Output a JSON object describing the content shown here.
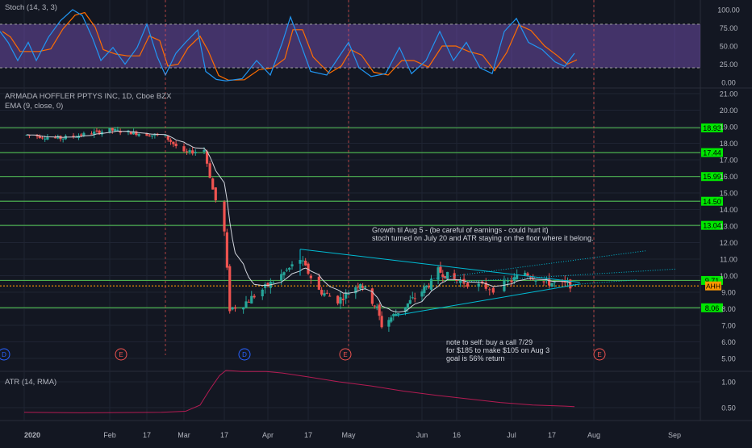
{
  "colors": {
    "background": "#131722",
    "grid": "#1f2433",
    "divider": "#2a2e39",
    "up": "#26a69a",
    "down": "#ef5350",
    "stoch_k": "#2196f3",
    "stoch_d": "#ff6d00",
    "stoch_band": "#7e57c2",
    "level": "#4caf50",
    "level_label": "#00e600",
    "current_price": "#ff9800",
    "ema": "#d1d4dc",
    "atr": "#e91e63",
    "triangle": "#00bcd4",
    "earnings": "#ef5350",
    "dividend": "#2962ff"
  },
  "stoch_panel": {
    "title": "Stoch (14, 3, 3)",
    "axis_labels": [
      "100.00",
      "75.00",
      "50.00",
      "25.00",
      "0.00"
    ]
  },
  "price_panel": {
    "title": "ARMADA HOFFLER PPTYS INC, 1D, Cboe BZX",
    "ema_title": "EMA (9, close, 0)",
    "axis_labels": [
      "21.00",
      "20.00",
      "19.00",
      "18.00",
      "17.00",
      "16.00",
      "15.00",
      "14.00",
      "13.00",
      "12.00",
      "11.00",
      "10.00",
      "9.00",
      "8.00",
      "7.00",
      "6.00",
      "5.00"
    ],
    "symbol_tag": "AHH",
    "annotation_line1": "Growth til Aug 5 - (be careful of earnings - could hurt it)",
    "annotation_line2": "stoch turned on July 20 and ATR staying on the floor where it belong.",
    "note_line1": "note to self: buy a call 7/29",
    "note_line2": "for $185 to make $105 on Aug 3",
    "note_line3": "goal is 56% return",
    "event_markers": [
      {
        "type": "dividend",
        "text": "D"
      },
      {
        "type": "earnings",
        "text": "E"
      },
      {
        "type": "dividend",
        "text": "D"
      },
      {
        "type": "earnings",
        "text": "E"
      },
      {
        "type": "earnings",
        "text": "E"
      }
    ]
  },
  "atr_panel": {
    "title": "ATR (14, RMA)",
    "axis_labels": [
      "1.00",
      "0.50"
    ]
  },
  "time_axis": {
    "labels": [
      "2020",
      "Feb",
      "17",
      "Mar",
      "17",
      "Apr",
      "17",
      "May",
      "Jun",
      "16",
      "Jul",
      "17",
      "Aug",
      "Sep"
    ]
  },
  "chart_data": {
    "type": "candlestick",
    "symbol": "AHH",
    "title": "ARMADA HOFFLER PPTYS INC, 1D, Cboe BZX",
    "y_range": [
      4.5,
      21.5
    ],
    "horizontal_levels": [
      {
        "value": "18.93",
        "price": 18.93
      },
      {
        "value": "17.44",
        "price": 17.44
      },
      {
        "value": "15.99",
        "price": 15.99
      },
      {
        "value": "14.50",
        "price": 14.5
      },
      {
        "value": "13.04",
        "price": 13.04
      },
      {
        "value": "9.71",
        "price": 9.71
      },
      {
        "value": "8.06",
        "price": 8.06
      }
    ],
    "current_price": 9.38,
    "close_series": [
      {
        "date": "2020-01-02",
        "close": 18.5
      },
      {
        "date": "2020-01-15",
        "close": 18.3
      },
      {
        "date": "2020-02-03",
        "close": 18.8
      },
      {
        "date": "2020-02-14",
        "close": 18.6
      },
      {
        "date": "2020-02-24",
        "close": 18.4
      },
      {
        "date": "2020-03-02",
        "close": 17.4
      },
      {
        "date": "2020-03-09",
        "close": 17.6
      },
      {
        "date": "2020-03-12",
        "close": 15.2
      },
      {
        "date": "2020-03-16",
        "close": 12.6
      },
      {
        "date": "2020-03-18",
        "close": 8.0
      },
      {
        "date": "2020-03-23",
        "close": 8.3
      },
      {
        "date": "2020-04-01",
        "close": 9.4
      },
      {
        "date": "2020-04-08",
        "close": 10.3
      },
      {
        "date": "2020-04-13",
        "close": 11.0
      },
      {
        "date": "2020-04-20",
        "close": 9.1
      },
      {
        "date": "2020-04-27",
        "close": 8.5
      },
      {
        "date": "2020-05-06",
        "close": 9.6
      },
      {
        "date": "2020-05-13",
        "close": 8.0
      },
      {
        "date": "2020-05-15",
        "close": 7.0
      },
      {
        "date": "2020-05-26",
        "close": 8.3
      },
      {
        "date": "2020-06-05",
        "close": 9.6
      },
      {
        "date": "2020-06-08",
        "close": 10.3
      },
      {
        "date": "2020-06-16",
        "close": 9.7
      },
      {
        "date": "2020-06-26",
        "close": 9.2
      },
      {
        "date": "2020-07-06",
        "close": 10.2
      },
      {
        "date": "2020-07-13",
        "close": 9.6
      },
      {
        "date": "2020-07-23",
        "close": 9.45
      }
    ]
  }
}
